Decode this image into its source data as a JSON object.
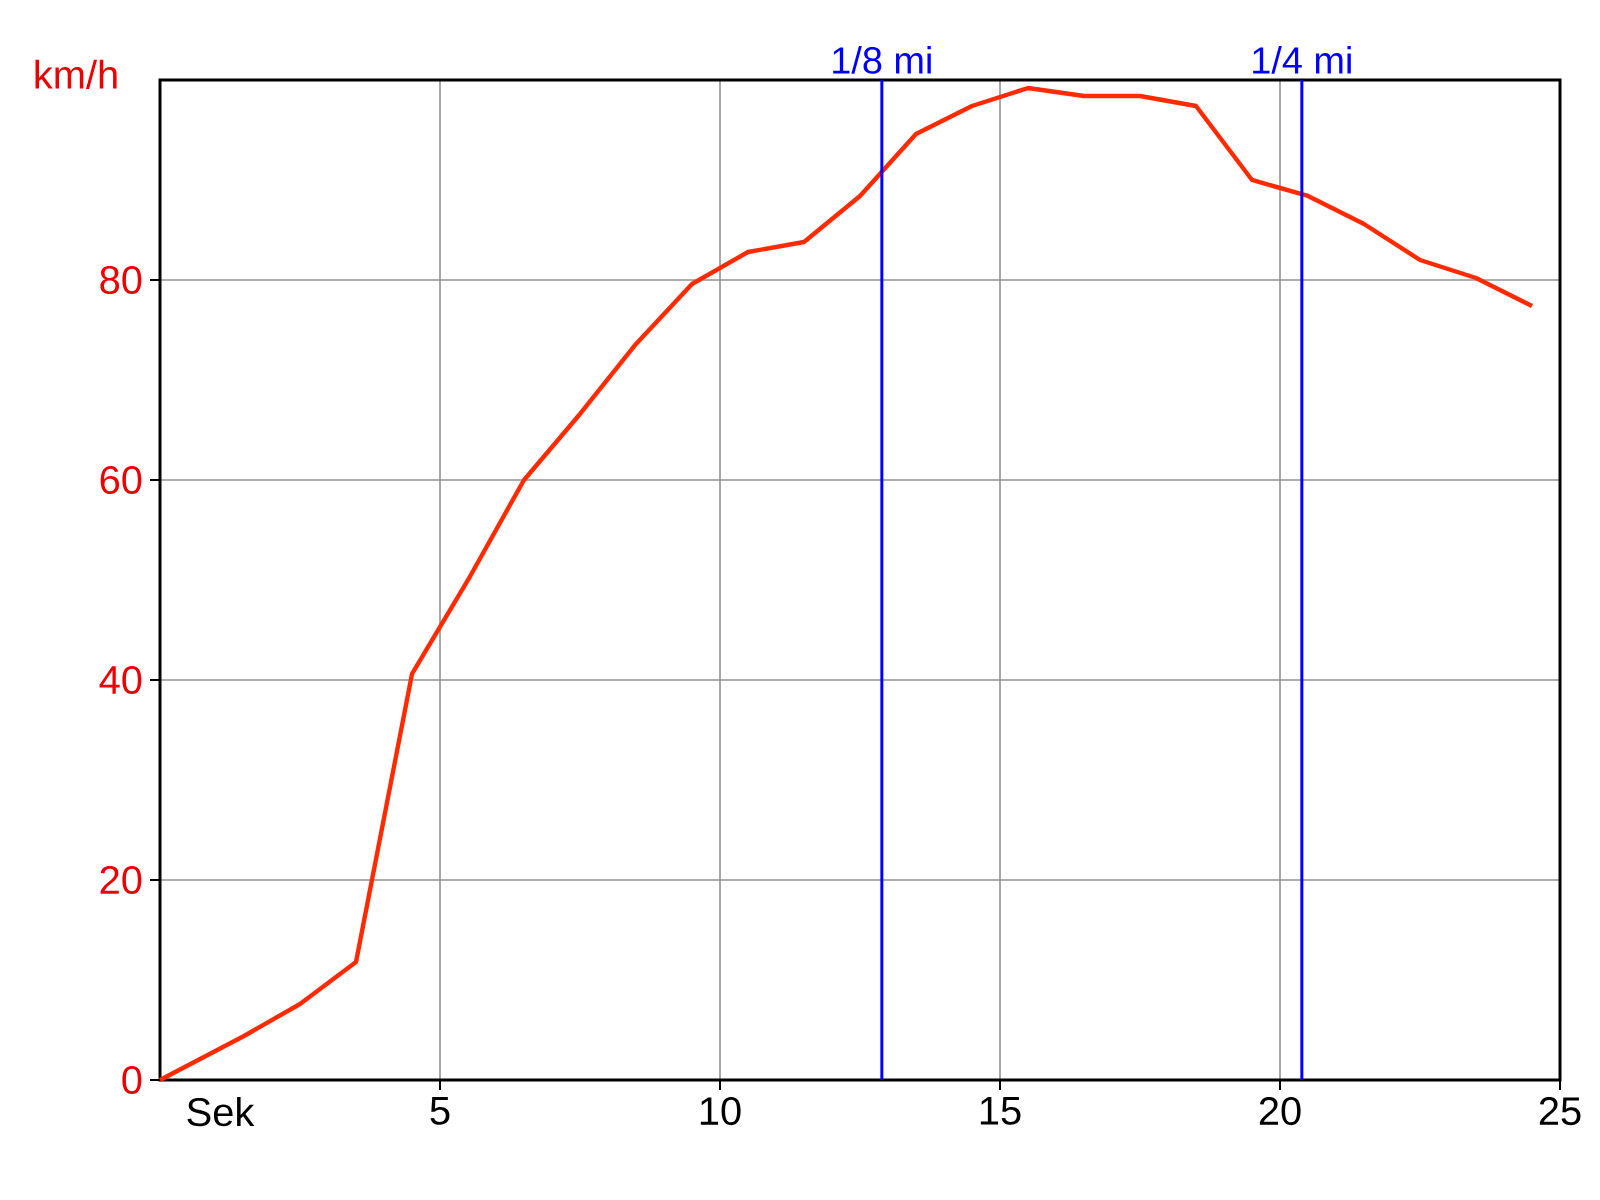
{
  "chart_data": {
    "type": "line",
    "xlabel": "Sek",
    "ylabel": "km/h",
    "x": [
      0,
      1.5,
      2.5,
      3.5,
      4.5,
      5.5,
      6.5,
      7.5,
      8.5,
      9.5,
      10.5,
      11.5,
      12.5,
      13.5,
      14.5,
      15.5,
      16.5,
      17.5,
      18.5,
      19.5,
      20.5,
      21.5,
      22.5,
      23.5,
      24.5
    ],
    "series": [
      {
        "color": "#ff2a00",
        "values": [
          0,
          4.4,
          7.6,
          11.8,
          40.6,
          50,
          60,
          66.6,
          73.6,
          79.6,
          82.8,
          83.8,
          88.4,
          94.6,
          97.4,
          99.2,
          98.4,
          98.4,
          97.4,
          90,
          88.4,
          85.6,
          82,
          80.2,
          77.4
        ]
      }
    ],
    "xlim": [
      0,
      25
    ],
    "ylim": [
      0,
      100
    ],
    "xticks": [
      5,
      10,
      15,
      20,
      25
    ],
    "yticks": [
      0,
      20,
      40,
      60,
      80
    ],
    "grid": true,
    "marker": "none",
    "line_style": "solid",
    "ref_lines": [
      {
        "axis": "x",
        "value": 12.89,
        "label": "1/8 mi",
        "color": "#0000ff"
      },
      {
        "axis": "x",
        "value": 20.39,
        "label": "1/4 mi",
        "color": "#0000ff"
      }
    ]
  }
}
